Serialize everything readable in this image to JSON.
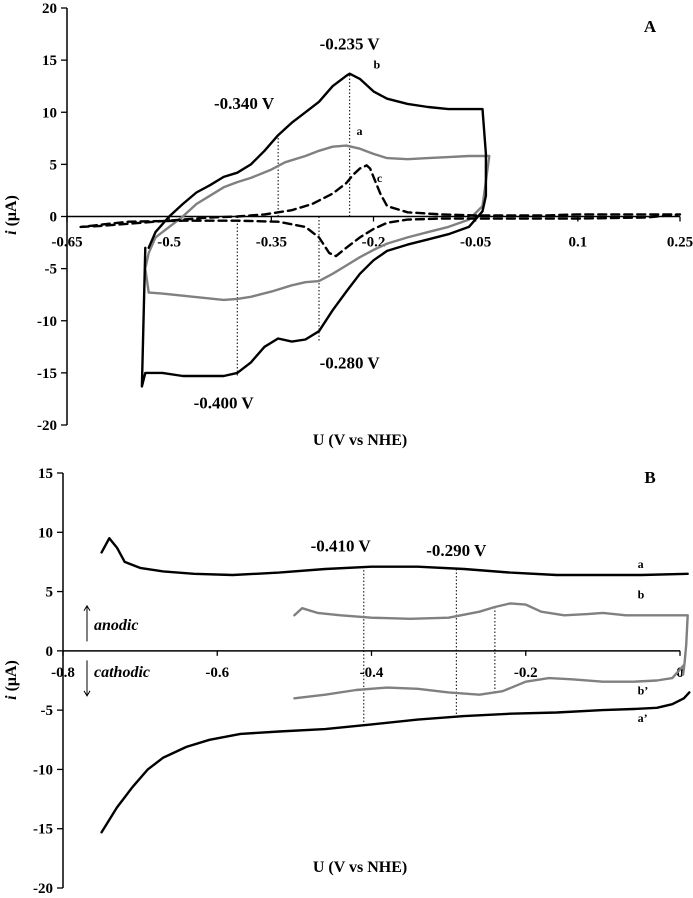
{
  "chart_data": [
    {
      "type": "line",
      "panel_label": "A",
      "xlabel": "U (V vs NHE)",
      "ylabel_italic": "i",
      "ylabel_unit": " (μA)",
      "xlim": [
        -0.65,
        0.25
      ],
      "ylim": [
        -20,
        20
      ],
      "xticks": [
        -0.65,
        -0.5,
        -0.35,
        -0.2,
        -0.05,
        0.1,
        0.25
      ],
      "xtick_labels": [
        "-0.65",
        "-0.5",
        "-0.35",
        "-0.2",
        "-0.05",
        "0.1",
        "0.25"
      ],
      "yticks": [
        -20,
        -15,
        -10,
        -5,
        0,
        5,
        10,
        15,
        20
      ],
      "ytick_labels": [
        "-20",
        "-15",
        "-10",
        "-5",
        "0",
        "5",
        "10",
        "15",
        "20"
      ],
      "series": [
        {
          "name": "a",
          "color": "#808080",
          "dash": "solid",
          "x": [
            -0.53,
            -0.52,
            -0.5,
            -0.48,
            -0.46,
            -0.44,
            -0.42,
            -0.4,
            -0.38,
            -0.35,
            -0.33,
            -0.3,
            -0.28,
            -0.26,
            -0.24,
            -0.22,
            -0.2,
            -0.18,
            -0.15,
            -0.12,
            -0.09,
            -0.06,
            -0.04,
            -0.03,
            -0.04,
            -0.06,
            -0.09,
            -0.12,
            -0.15,
            -0.18,
            -0.2,
            -0.22,
            -0.24,
            -0.26,
            -0.28,
            -0.3,
            -0.32,
            -0.35,
            -0.38,
            -0.4,
            -0.42,
            -0.45,
            -0.48,
            -0.51,
            -0.53,
            -0.535,
            -0.53
          ],
          "y": [
            -3.5,
            -2.0,
            -1.0,
            0.0,
            1.2,
            2.0,
            2.8,
            3.3,
            3.7,
            4.5,
            5.2,
            5.8,
            6.3,
            6.7,
            6.8,
            6.5,
            6.0,
            5.6,
            5.5,
            5.6,
            5.7,
            5.8,
            5.8,
            5.8,
            1.0,
            -0.3,
            -1.0,
            -1.5,
            -2.0,
            -2.6,
            -3.2,
            -3.9,
            -4.7,
            -5.5,
            -6.2,
            -6.3,
            -6.6,
            -7.2,
            -7.7,
            -7.9,
            -8.0,
            -7.8,
            -7.6,
            -7.4,
            -7.3,
            -5.0,
            -3.5
          ]
        },
        {
          "name": "b",
          "color": "#000000",
          "dash": "solid",
          "x": [
            -0.53,
            -0.52,
            -0.5,
            -0.48,
            -0.46,
            -0.44,
            -0.42,
            -0.4,
            -0.38,
            -0.36,
            -0.34,
            -0.32,
            -0.3,
            -0.28,
            -0.26,
            -0.24,
            -0.235,
            -0.22,
            -0.2,
            -0.18,
            -0.15,
            -0.12,
            -0.09,
            -0.06,
            -0.04,
            -0.035,
            -0.035,
            -0.04,
            -0.06,
            -0.09,
            -0.12,
            -0.15,
            -0.18,
            -0.2,
            -0.22,
            -0.24,
            -0.26,
            -0.28,
            -0.3,
            -0.32,
            -0.34,
            -0.36,
            -0.38,
            -0.4,
            -0.42,
            -0.45,
            -0.48,
            -0.51,
            -0.535,
            -0.54,
            -0.535
          ],
          "y": [
            -3.0,
            -1.5,
            0.0,
            1.2,
            2.3,
            3.0,
            3.8,
            4.2,
            5.0,
            6.3,
            7.8,
            9.0,
            10.0,
            11.0,
            12.5,
            13.5,
            13.7,
            13.2,
            12.0,
            11.3,
            10.8,
            10.5,
            10.3,
            10.3,
            10.3,
            6.0,
            2.0,
            0.5,
            -1.0,
            -1.7,
            -2.2,
            -2.7,
            -3.3,
            -4.2,
            -5.5,
            -7.2,
            -9.0,
            -11.0,
            -11.8,
            -12.0,
            -11.7,
            -12.5,
            -14.0,
            -15.0,
            -15.3,
            -15.3,
            -15.3,
            -15.0,
            -15.0,
            -16.3,
            -3.0
          ]
        },
        {
          "name": "c",
          "color": "#000000",
          "dash": "dashed",
          "x": [
            -0.63,
            -0.6,
            -0.56,
            -0.52,
            -0.48,
            -0.44,
            -0.4,
            -0.36,
            -0.32,
            -0.29,
            -0.26,
            -0.24,
            -0.23,
            -0.22,
            -0.21,
            -0.205,
            -0.2,
            -0.19,
            -0.18,
            -0.15,
            -0.1,
            -0.05,
            0.0,
            0.05,
            0.1,
            0.15,
            0.2,
            0.25,
            0.2,
            0.1,
            0.0,
            -0.1,
            -0.15,
            -0.18,
            -0.2,
            -0.22,
            -0.24,
            -0.255,
            -0.265,
            -0.28,
            -0.3,
            -0.34,
            -0.4,
            -0.48,
            -0.56,
            -0.63
          ],
          "y": [
            -1.0,
            -0.9,
            -0.7,
            -0.5,
            -0.3,
            -0.1,
            0.0,
            0.2,
            0.6,
            1.2,
            2.2,
            3.2,
            4.0,
            4.6,
            4.9,
            4.6,
            3.8,
            2.2,
            1.0,
            0.4,
            0.2,
            0.1,
            0.1,
            0.1,
            0.2,
            0.2,
            0.2,
            0.2,
            -0.1,
            -0.2,
            -0.2,
            -0.2,
            -0.3,
            -0.6,
            -1.2,
            -2.0,
            -3.0,
            -3.8,
            -3.5,
            -2.0,
            -1.0,
            -0.5,
            -0.4,
            -0.4,
            -0.5,
            -1.0
          ]
        }
      ],
      "series_labels": [
        {
          "text": "a",
          "x": -0.225,
          "y": 7.8
        },
        {
          "text": "b",
          "x": -0.2,
          "y": 14.2
        },
        {
          "text": "c",
          "x": -0.195,
          "y": 3.3
        }
      ],
      "annotations": [
        {
          "text": "-0.235 V",
          "x": -0.235,
          "y": 16.0
        },
        {
          "text": "-0.340 V",
          "x": -0.39,
          "y": 10.3
        },
        {
          "text": "-0.280 V",
          "x": -0.235,
          "y": -14.6
        },
        {
          "text": "-0.400 V",
          "x": -0.42,
          "y": -18.4
        }
      ],
      "vlines": [
        {
          "x": -0.235,
          "y0": 0,
          "y1": 13.7
        },
        {
          "x": -0.34,
          "y0": 0,
          "y1": 8.0
        },
        {
          "x": -0.28,
          "y0": 0,
          "y1": -12.0
        },
        {
          "x": -0.4,
          "y0": 0,
          "y1": -15.3
        }
      ]
    },
    {
      "type": "line",
      "panel_label": "B",
      "xlabel": "U (V vs NHE)",
      "ylabel_italic": "i",
      "ylabel_unit": " (μA)",
      "xlim": [
        -0.8,
        0
      ],
      "ylim": [
        -20,
        15
      ],
      "xticks": [
        -0.8,
        -0.6,
        -0.4,
        -0.2,
        0
      ],
      "xtick_labels": [
        "-0.8",
        "-0.6",
        "-0.4",
        "-0.2",
        "0"
      ],
      "yticks": [
        -20,
        -15,
        -10,
        -5,
        0,
        5,
        10,
        15
      ],
      "ytick_labels": [
        "-20",
        "-15",
        "-10",
        "-5",
        "0",
        "5",
        "10",
        "15"
      ],
      "series": [
        {
          "name": "a",
          "color": "#000000",
          "dash": "solid",
          "x": [
            -0.75,
            -0.74,
            -0.73,
            -0.72,
            -0.7,
            -0.67,
            -0.63,
            -0.58,
            -0.52,
            -0.46,
            -0.4,
            -0.34,
            -0.28,
            -0.22,
            -0.16,
            -0.1,
            -0.05,
            0.01
          ],
          "y": [
            8.3,
            9.5,
            8.7,
            7.5,
            7.0,
            6.7,
            6.5,
            6.4,
            6.6,
            6.9,
            7.1,
            7.1,
            6.9,
            6.6,
            6.4,
            6.4,
            6.4,
            6.5
          ]
        },
        {
          "name": "b",
          "color": "#808080",
          "dash": "solid",
          "x": [
            -0.5,
            -0.49,
            -0.47,
            -0.44,
            -0.4,
            -0.35,
            -0.3,
            -0.26,
            -0.24,
            -0.22,
            -0.2,
            -0.18,
            -0.15,
            -0.12,
            -0.1,
            -0.07,
            -0.04,
            -0.02,
            0.01
          ],
          "y": [
            3.0,
            3.6,
            3.2,
            3.0,
            2.8,
            2.7,
            2.8,
            3.3,
            3.7,
            4.0,
            3.9,
            3.3,
            3.0,
            3.1,
            3.2,
            3.0,
            3.0,
            3.0,
            3.0
          ],
          "return_x": [
            0.01,
            0.008,
            0.006,
            0.004
          ],
          "return_y": [
            3.0,
            0.5,
            -1.0,
            -2.0
          ]
        },
        {
          "name": "b’",
          "color": "#808080",
          "dash": "solid",
          "x": [
            -0.5,
            -0.46,
            -0.42,
            -0.38,
            -0.34,
            -0.3,
            -0.26,
            -0.23,
            -0.2,
            -0.17,
            -0.14,
            -0.1,
            -0.06,
            -0.03,
            -0.01,
            0.005
          ],
          "y": [
            -4.0,
            -3.7,
            -3.3,
            -3.1,
            -3.2,
            -3.5,
            -3.7,
            -3.4,
            -2.6,
            -2.3,
            -2.4,
            -2.6,
            -2.6,
            -2.5,
            -2.3,
            -1.2
          ]
        },
        {
          "name": "a’",
          "color": "#000000",
          "dash": "solid",
          "x": [
            -0.75,
            -0.73,
            -0.71,
            -0.69,
            -0.67,
            -0.64,
            -0.61,
            -0.57,
            -0.52,
            -0.46,
            -0.4,
            -0.34,
            -0.28,
            -0.22,
            -0.16,
            -0.1,
            -0.06,
            -0.03,
            -0.01,
            0.005,
            0.012
          ],
          "y": [
            -15.3,
            -13.2,
            -11.5,
            -10.0,
            -9.0,
            -8.1,
            -7.5,
            -7.0,
            -6.8,
            -6.6,
            -6.2,
            -5.8,
            -5.5,
            -5.3,
            -5.2,
            -5.0,
            -4.9,
            -4.8,
            -4.5,
            -4.0,
            -3.5
          ]
        }
      ],
      "series_labels": [
        {
          "text": "a",
          "x": -0.055,
          "y": 7.0
        },
        {
          "text": "b",
          "x": -0.055,
          "y": 4.4
        },
        {
          "text": "b’",
          "x": -0.055,
          "y": -3.7
        },
        {
          "text": "a’",
          "x": -0.055,
          "y": -6.0
        }
      ],
      "annotations": [
        {
          "text": "-0.410 V",
          "x": -0.44,
          "y": 8.4
        },
        {
          "text": "-0.290 V",
          "x": -0.29,
          "y": 8.0
        }
      ],
      "vlines": [
        {
          "x": -0.41,
          "y0": 7.1,
          "y1": -6.2
        },
        {
          "x": -0.29,
          "y0": 6.9,
          "y1": -5.4
        },
        {
          "x": -0.24,
          "y0": 3.7,
          "y1": -3.6
        }
      ],
      "direction_labels": {
        "anodic": "anodic",
        "cathodic": "cathodic"
      }
    }
  ]
}
